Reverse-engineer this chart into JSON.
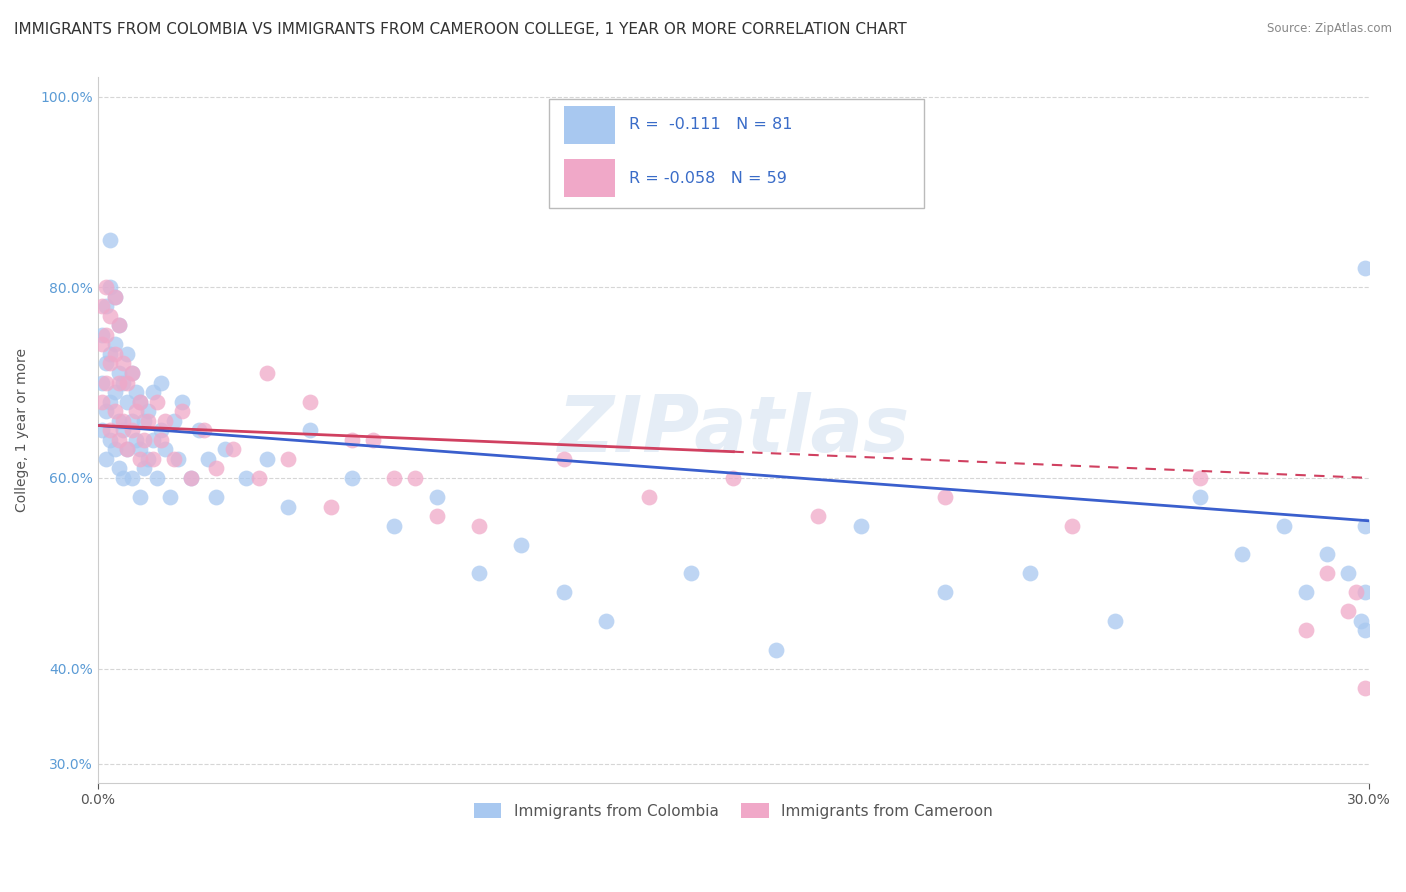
{
  "title": "IMMIGRANTS FROM COLOMBIA VS IMMIGRANTS FROM CAMEROON COLLEGE, 1 YEAR OR MORE CORRELATION CHART",
  "source": "Source: ZipAtlas.com",
  "ylabel": "College, 1 year or more",
  "xlim": [
    0.0,
    0.3
  ],
  "ylim": [
    0.28,
    1.02
  ],
  "xtick_vals": [
    0.0,
    0.3
  ],
  "xtick_labels": [
    "0.0%",
    "30.0%"
  ],
  "ytick_vals": [
    0.3,
    0.4,
    0.6,
    0.8,
    1.0
  ],
  "ytick_labels": [
    "30.0%",
    "40.0%",
    "60.0%",
    "80.0%",
    "100.0%"
  ],
  "color_colombia": "#a8c8f0",
  "color_cameroon": "#f0a8c8",
  "line_color_colombia": "#3a5fcd",
  "line_color_cameroon": "#d04060",
  "watermark": "ZIPatlas",
  "colombia_label": "Immigrants from Colombia",
  "cameroon_label": "Immigrants from Cameroon",
  "background_color": "#ffffff",
  "grid_color": "#cccccc",
  "title_fontsize": 11,
  "axis_fontsize": 10,
  "tick_fontsize": 10,
  "colombia_x": [
    0.001,
    0.001,
    0.001,
    0.002,
    0.002,
    0.002,
    0.002,
    0.003,
    0.003,
    0.003,
    0.003,
    0.003,
    0.004,
    0.004,
    0.004,
    0.004,
    0.005,
    0.005,
    0.005,
    0.005,
    0.006,
    0.006,
    0.006,
    0.007,
    0.007,
    0.007,
    0.008,
    0.008,
    0.008,
    0.009,
    0.009,
    0.01,
    0.01,
    0.01,
    0.011,
    0.011,
    0.012,
    0.012,
    0.013,
    0.013,
    0.014,
    0.015,
    0.015,
    0.016,
    0.017,
    0.018,
    0.019,
    0.02,
    0.022,
    0.024,
    0.026,
    0.028,
    0.03,
    0.035,
    0.04,
    0.045,
    0.05,
    0.06,
    0.07,
    0.08,
    0.09,
    0.1,
    0.11,
    0.12,
    0.14,
    0.16,
    0.18,
    0.2,
    0.22,
    0.24,
    0.26,
    0.27,
    0.28,
    0.285,
    0.29,
    0.295,
    0.298,
    0.299,
    0.299,
    0.299,
    0.299
  ],
  "colombia_y": [
    0.65,
    0.7,
    0.75,
    0.62,
    0.67,
    0.72,
    0.78,
    0.64,
    0.68,
    0.73,
    0.8,
    0.85,
    0.63,
    0.69,
    0.74,
    0.79,
    0.61,
    0.66,
    0.71,
    0.76,
    0.6,
    0.65,
    0.7,
    0.63,
    0.68,
    0.73,
    0.6,
    0.66,
    0.71,
    0.64,
    0.69,
    0.58,
    0.63,
    0.68,
    0.61,
    0.66,
    0.62,
    0.67,
    0.64,
    0.69,
    0.6,
    0.65,
    0.7,
    0.63,
    0.58,
    0.66,
    0.62,
    0.68,
    0.6,
    0.65,
    0.62,
    0.58,
    0.63,
    0.6,
    0.62,
    0.57,
    0.65,
    0.6,
    0.55,
    0.58,
    0.5,
    0.53,
    0.48,
    0.45,
    0.5,
    0.42,
    0.55,
    0.48,
    0.5,
    0.45,
    0.58,
    0.52,
    0.55,
    0.48,
    0.52,
    0.5,
    0.45,
    0.82,
    0.55,
    0.48,
    0.44
  ],
  "cameroon_x": [
    0.001,
    0.001,
    0.001,
    0.002,
    0.002,
    0.002,
    0.003,
    0.003,
    0.003,
    0.004,
    0.004,
    0.004,
    0.005,
    0.005,
    0.005,
    0.006,
    0.006,
    0.007,
    0.007,
    0.008,
    0.008,
    0.009,
    0.01,
    0.01,
    0.011,
    0.012,
    0.013,
    0.014,
    0.015,
    0.016,
    0.018,
    0.02,
    0.022,
    0.025,
    0.028,
    0.032,
    0.038,
    0.045,
    0.055,
    0.065,
    0.075,
    0.09,
    0.11,
    0.13,
    0.15,
    0.17,
    0.2,
    0.23,
    0.26,
    0.285,
    0.29,
    0.295,
    0.297,
    0.299,
    0.04,
    0.05,
    0.06,
    0.07,
    0.08
  ],
  "cameroon_y": [
    0.68,
    0.74,
    0.78,
    0.7,
    0.75,
    0.8,
    0.65,
    0.72,
    0.77,
    0.67,
    0.73,
    0.79,
    0.64,
    0.7,
    0.76,
    0.66,
    0.72,
    0.63,
    0.7,
    0.65,
    0.71,
    0.67,
    0.62,
    0.68,
    0.64,
    0.66,
    0.62,
    0.68,
    0.64,
    0.66,
    0.62,
    0.67,
    0.6,
    0.65,
    0.61,
    0.63,
    0.6,
    0.62,
    0.57,
    0.64,
    0.6,
    0.55,
    0.62,
    0.58,
    0.6,
    0.56,
    0.58,
    0.55,
    0.6,
    0.44,
    0.5,
    0.46,
    0.48,
    0.38,
    0.71,
    0.68,
    0.64,
    0.6,
    0.56
  ]
}
